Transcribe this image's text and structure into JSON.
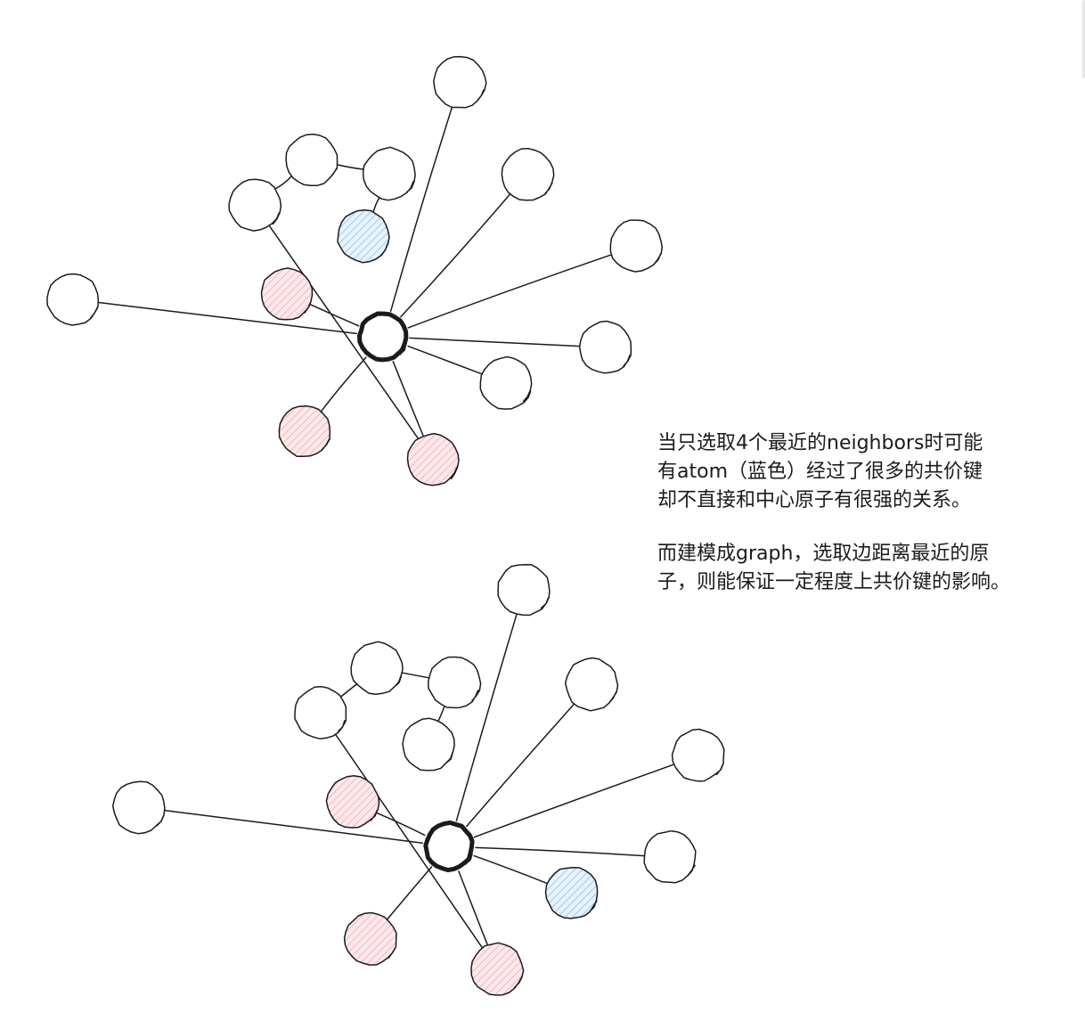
{
  "notes": [
    {
      "lines": [
        "当只选取4个最近的neighbors时可能",
        "有atom（蓝色）经过了很多的共价键",
        "却不直接和中心原子有很强的关系。"
      ]
    },
    {
      "lines": [
        "而建模成graph，选取边距离最近的原",
        "子，则能保证一定程度上共价键的影响。"
      ]
    }
  ],
  "colors": {
    "stroke": "#1b1b1b",
    "pink_fill": "#f2a9b0",
    "pink_bg": "#fce9ec",
    "blue_fill": "#8fc1ea",
    "blue_bg": "#e7f2fb"
  },
  "diagrams": [
    {
      "name": "top-molecule",
      "center": "c",
      "nodes": [
        {
          "id": "c",
          "role": "center"
        },
        {
          "id": "n1",
          "role": "plain"
        },
        {
          "id": "n2",
          "role": "plain"
        },
        {
          "id": "n3",
          "role": "plain"
        },
        {
          "id": "n4",
          "role": "plain"
        },
        {
          "id": "n5",
          "role": "plain"
        },
        {
          "id": "n6",
          "role": "plain"
        },
        {
          "id": "n7",
          "role": "selected"
        },
        {
          "id": "n8",
          "role": "selected"
        },
        {
          "id": "n9",
          "role": "selected"
        },
        {
          "id": "r1",
          "role": "plain"
        },
        {
          "id": "r2",
          "role": "plain"
        },
        {
          "id": "r3",
          "role": "plain"
        },
        {
          "id": "r4",
          "role": "selected-far"
        }
      ],
      "edges": [
        [
          "c",
          "n1"
        ],
        [
          "c",
          "n2"
        ],
        [
          "c",
          "n3"
        ],
        [
          "c",
          "n4"
        ],
        [
          "c",
          "n5"
        ],
        [
          "c",
          "n6"
        ],
        [
          "c",
          "n7"
        ],
        [
          "c",
          "n8"
        ],
        [
          "c",
          "n9"
        ],
        [
          "n9",
          "r1"
        ],
        [
          "r1",
          "r2"
        ],
        [
          "r2",
          "r3"
        ],
        [
          "r3",
          "r4"
        ]
      ]
    },
    {
      "name": "bottom-graph",
      "center": "c",
      "nodes": [
        {
          "id": "c",
          "role": "center"
        },
        {
          "id": "n1",
          "role": "plain"
        },
        {
          "id": "n2",
          "role": "plain"
        },
        {
          "id": "n3",
          "role": "plain"
        },
        {
          "id": "n4",
          "role": "plain"
        },
        {
          "id": "n5",
          "role": "selected-far"
        },
        {
          "id": "n6",
          "role": "plain"
        },
        {
          "id": "n7",
          "role": "selected"
        },
        {
          "id": "n8",
          "role": "selected"
        },
        {
          "id": "n9",
          "role": "selected"
        },
        {
          "id": "r1",
          "role": "plain"
        },
        {
          "id": "r2",
          "role": "plain"
        },
        {
          "id": "r3",
          "role": "plain"
        },
        {
          "id": "r4",
          "role": "plain"
        }
      ],
      "edges": [
        [
          "c",
          "n1"
        ],
        [
          "c",
          "n2"
        ],
        [
          "c",
          "n3"
        ],
        [
          "c",
          "n4"
        ],
        [
          "c",
          "n5"
        ],
        [
          "c",
          "n6"
        ],
        [
          "c",
          "n7"
        ],
        [
          "c",
          "n8"
        ],
        [
          "c",
          "n9"
        ],
        [
          "n9",
          "r1"
        ],
        [
          "r1",
          "r2"
        ],
        [
          "r2",
          "r3"
        ],
        [
          "r3",
          "r4"
        ]
      ]
    }
  ]
}
